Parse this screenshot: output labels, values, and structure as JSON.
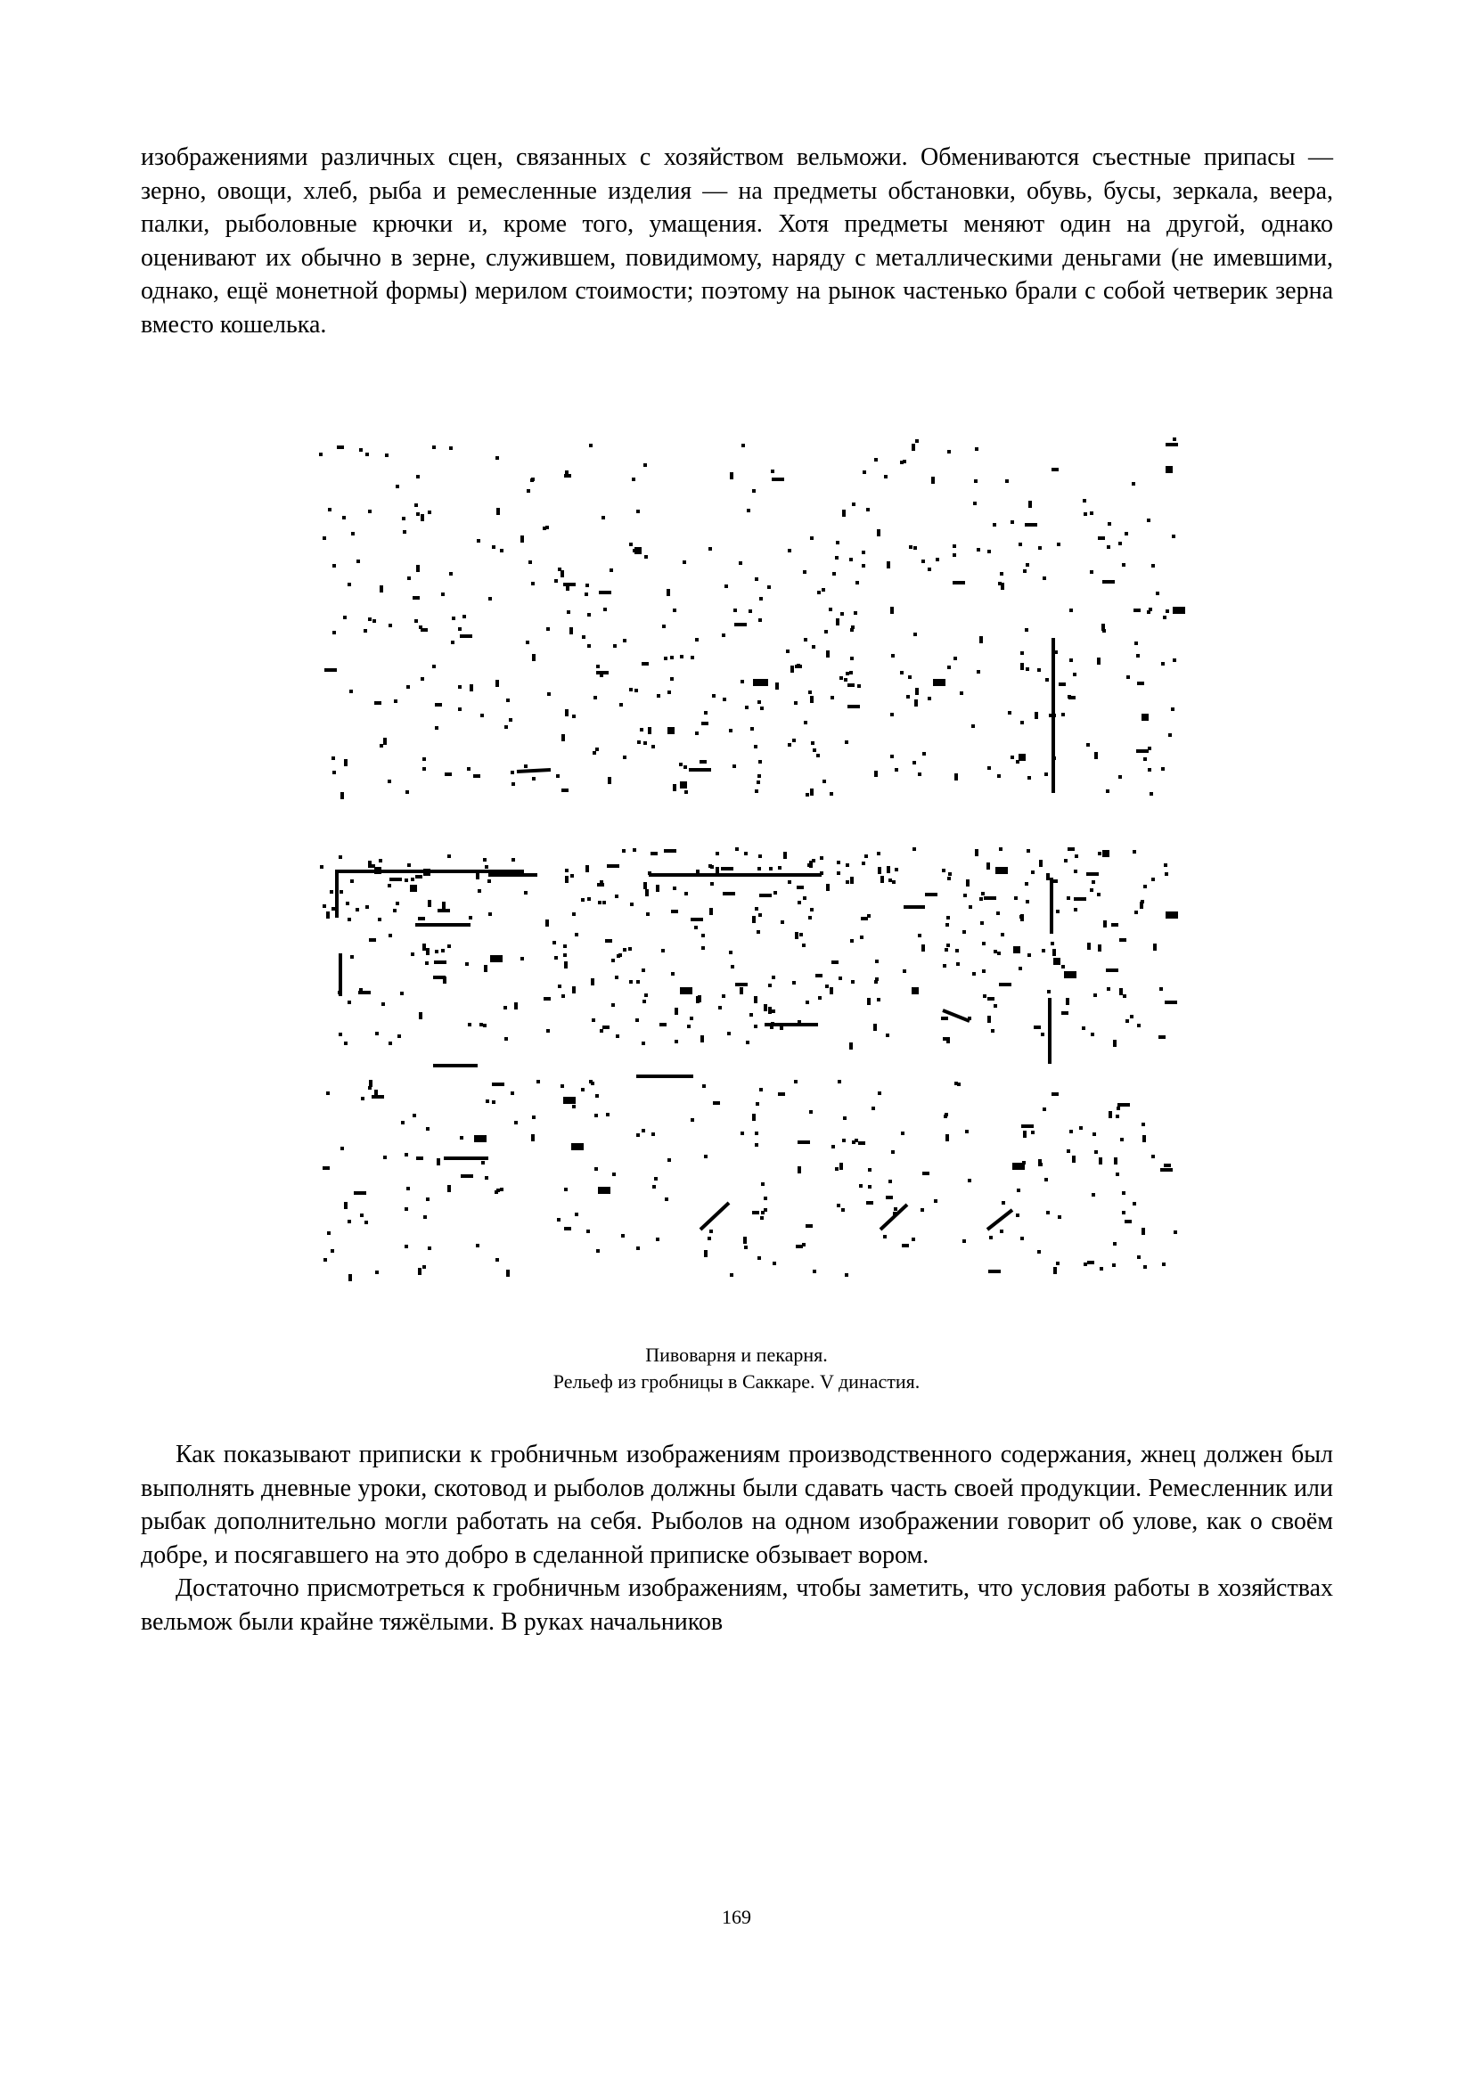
{
  "intro_paragraph": "изображениями различных сцен, связанных с хозяйством вельможи. Обмениваются съестные припасы — зерно, овощи, хлеб, рыба и ремесленные изделия — на предметы обстановки, обувь, бусы, зеркала, веера, палки, рыболовные крючки и, кроме того, умащения. Хотя предметы меняют один на другой, однако оценивают их обычно в зерне, служившем, повидимому, наряду с металлическими деньгами (не имевшими, однако, ещё монетной формы) мерилом стоимости; поэтому на рынок частенько брали с собой четверик зерна вместо кошелька.",
  "figure": {
    "caption_line1": "Пивоварня и пекарня.",
    "caption_line2": "Рельеф из гробницы в Саккаре. V династия."
  },
  "paragraphs": [
    "Как показывают приписки к гробничньм изображениям производственного содержания, жнец должен был выполнять дневные уроки, скотовод и рыболов должны были сдавать часть своей продукции. Ремесленник или рыбак дополнительно могли работать на себя. Рыболов на одном изображении говорит об улове, как о своём добре, и посягавшего на это добро в сделанной приписке обзывает вором.",
    "Достаточно присмотреться к гробничньм изображениям, чтобы заметить, что условия работы в хозяйствах вельмож были крайне тяжёлыми. В руках начальников"
  ],
  "page_number": "169"
}
